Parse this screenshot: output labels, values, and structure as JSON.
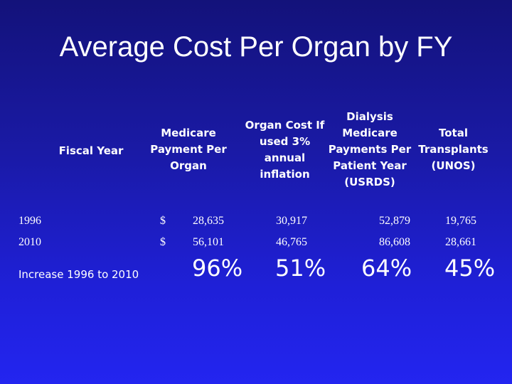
{
  "slide": {
    "title": "Average Cost Per Organ by FY"
  },
  "table": {
    "headers": {
      "fiscal_year": "Fiscal Year",
      "medicare_payment": [
        "Medicare",
        "Payment Per",
        "Organ"
      ],
      "organ_cost_inflation": [
        "Organ Cost If",
        "used 3%",
        "annual",
        "inflation"
      ],
      "dialysis_payments": [
        "Dialysis",
        "Medicare",
        "Payments Per",
        "Patient Year",
        "(USRDS)"
      ],
      "total_transplants": [
        "Total",
        "Transplants",
        "(UNOS)"
      ]
    },
    "rows": [
      {
        "year": "1996",
        "currency": "$",
        "medicare_payment": "28,635",
        "organ_cost_inflation": "30,917",
        "dialysis_payments": "52,879",
        "total_transplants": "19,765"
      },
      {
        "year": "2010",
        "currency": "$",
        "medicare_payment": "56,101",
        "organ_cost_inflation": "46,765",
        "dialysis_payments": "86,608",
        "total_transplants": "28,661"
      }
    ],
    "increase": {
      "label": "Increase 1996 to 2010",
      "medicare_payment": "96%",
      "organ_cost_inflation": "51%",
      "dialysis_payments": "64%",
      "total_transplants": "45%"
    }
  }
}
